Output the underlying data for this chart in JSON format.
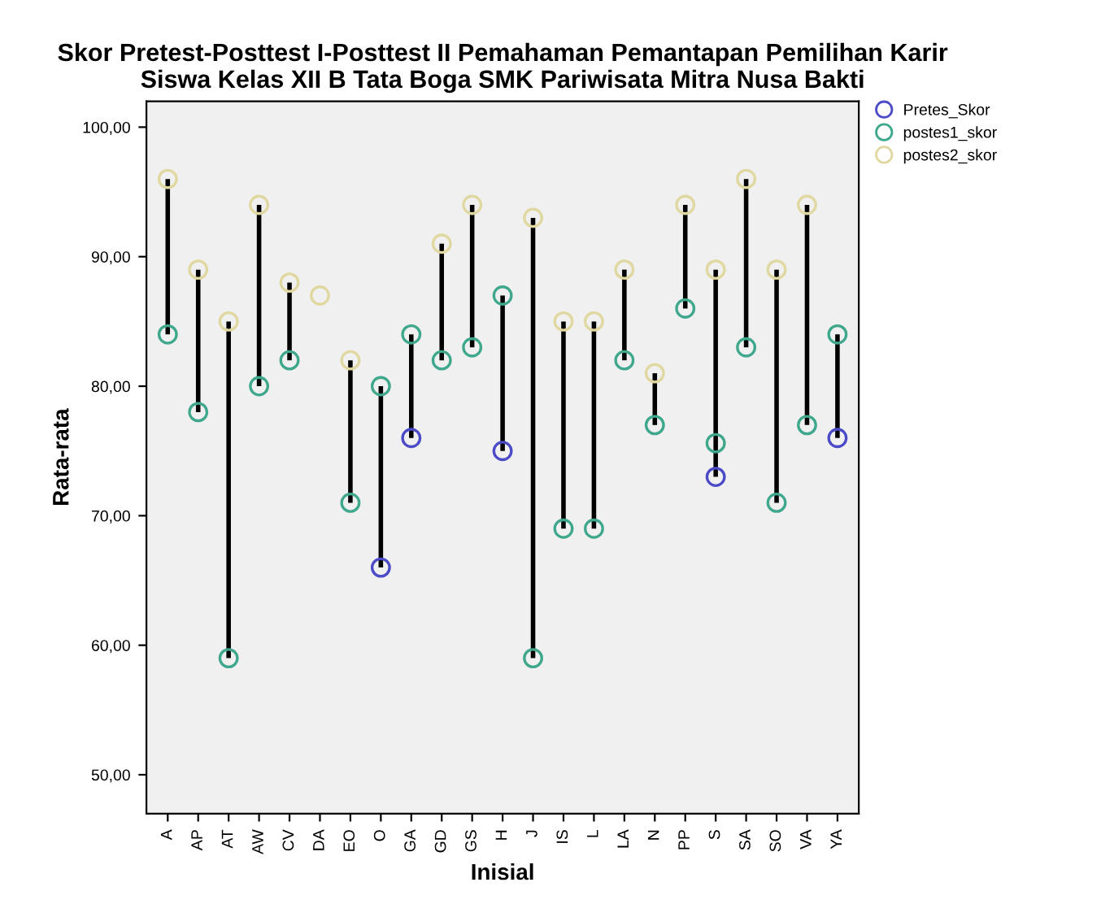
{
  "chart_data": {
    "type": "scatter",
    "title": "Skor Pretest-Posttest I-Posttest II Pemahaman Pemantapan Pemilihan Karir\nSiswa Kelas XII B Tata Boga SMK Pariwisata Mitra Nusa Bakti",
    "xlabel": "Inisial",
    "ylabel": "Rata-rata",
    "categories": [
      "A",
      "AP",
      "AT",
      "AW",
      "CV",
      "DA",
      "EO",
      "O",
      "GA",
      "GD",
      "GS",
      "H",
      "J",
      "IS",
      "L",
      "LA",
      "N",
      "PP",
      "S",
      "SA",
      "SO",
      "VA",
      "YA"
    ],
    "series": [
      {
        "name": "Pretes_Skor",
        "color": "#4b4bc8",
        "values": [
          null,
          null,
          null,
          null,
          null,
          null,
          null,
          66,
          76,
          null,
          null,
          75,
          null,
          null,
          null,
          null,
          null,
          null,
          73,
          null,
          null,
          null,
          76
        ]
      },
      {
        "name": "postes1_skor",
        "color": "#3fa88c",
        "values": [
          84,
          78,
          59,
          80,
          82,
          null,
          71,
          80,
          84,
          82,
          83,
          87,
          59,
          69,
          69,
          82,
          77,
          86,
          75.6,
          83,
          71,
          77,
          84
        ]
      },
      {
        "name": "postes2_skor",
        "color": "#e0d8a0",
        "values": [
          96,
          89,
          85,
          94,
          88,
          87,
          82,
          null,
          null,
          91,
          94,
          null,
          93,
          85,
          85,
          89,
          81,
          94,
          89,
          96,
          89,
          94,
          null
        ]
      }
    ],
    "ylim": [
      47,
      102
    ],
    "yticks": [
      {
        "value": 50,
        "label": "50,00"
      },
      {
        "value": 60,
        "label": "60,00"
      },
      {
        "value": 70,
        "label": "70,00"
      },
      {
        "value": 80,
        "label": "80,00"
      },
      {
        "value": 90,
        "label": "90,00"
      },
      {
        "value": 100,
        "label": "100,00"
      }
    ],
    "marker": "circle",
    "legend": "top right",
    "grid": false
  }
}
